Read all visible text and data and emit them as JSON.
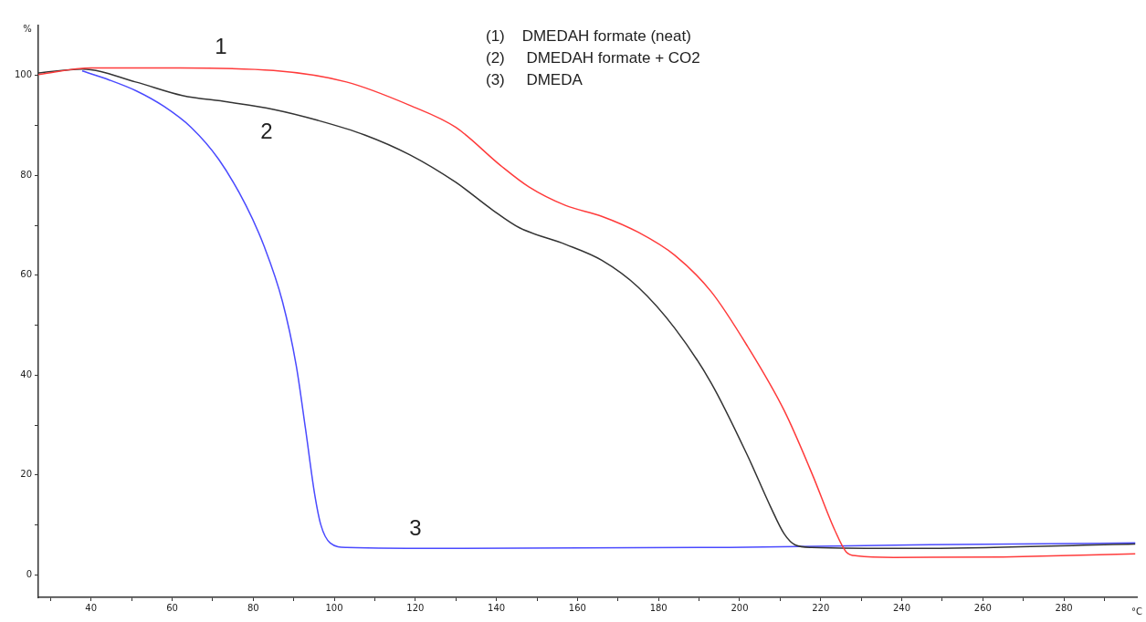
{
  "chart_data": {
    "type": "line",
    "xlabel": "°C",
    "ylabel": "%",
    "xlim": [
      27,
      298
    ],
    "ylim": [
      -4.5,
      110
    ],
    "xticks": [
      {
        "value": 30,
        "label": null
      },
      40,
      {
        "value": 50,
        "label": null
      },
      60,
      {
        "value": 70,
        "label": null
      },
      80,
      {
        "value": 90,
        "label": null
      },
      100,
      {
        "value": 110,
        "label": null
      },
      120,
      {
        "value": 130,
        "label": null
      },
      140,
      {
        "value": 150,
        "label": null
      },
      160,
      {
        "value": 170,
        "label": null
      },
      180,
      {
        "value": 190,
        "label": null
      },
      200,
      {
        "value": 210,
        "label": null
      },
      220,
      {
        "value": 230,
        "label": null
      },
      240,
      {
        "value": 250,
        "label": null
      },
      260,
      {
        "value": 270,
        "label": null
      },
      280,
      {
        "value": 290,
        "label": null
      }
    ],
    "yticks": [
      0,
      {
        "value": 10,
        "label": null
      },
      20,
      {
        "value": 30,
        "label": null
      },
      40,
      {
        "value": 50,
        "label": null
      },
      60,
      {
        "value": 70,
        "label": null
      },
      80,
      {
        "value": 90,
        "label": null
      },
      100
    ],
    "marker": "none",
    "line_style": "solid",
    "legend": false,
    "series": [
      {
        "color": "#ff3b3b",
        "x": [
          27,
          40,
          62,
          85,
          103,
          118.7,
          130,
          141,
          148,
          157,
          166,
          175,
          184,
          193,
          202,
          211,
          218,
          223.4,
          226.3,
          229,
          238,
          265,
          297.6
        ],
        "values": [
          100.2,
          101.5,
          101.5,
          101,
          98.7,
          94,
          89.6,
          82,
          77.7,
          74,
          71.8,
          68.6,
          64,
          56.7,
          45.7,
          32.9,
          20,
          9.1,
          4.6,
          3.8,
          3.5,
          3.6,
          4.2
        ]
      },
      {
        "color": "#333333",
        "x": [
          27,
          37.8,
          51,
          62.5,
          73.7,
          85,
          96,
          107.5,
          118.7,
          130,
          139,
          145.7,
          157,
          166,
          175,
          184,
          193,
          202,
          207.6,
          211,
          213.7,
          217.7,
          242.5,
          297.6
        ],
        "values": [
          100.5,
          101.3,
          98.7,
          96,
          94.7,
          93.2,
          91,
          88.1,
          84.1,
          78.6,
          73.1,
          69.5,
          66.2,
          63,
          57.6,
          49.4,
          38.4,
          23.8,
          13.7,
          8.2,
          6,
          5.5,
          5.3,
          6.2
        ]
      },
      {
        "color": "#4a4aff",
        "x": [
          37.8,
          44.5,
          51.2,
          58,
          64.7,
          71.5,
          78.2,
          82.7,
          87.2,
          90.6,
          92.9,
          95.1,
          96.7,
          99,
          103,
          130,
          197.5,
          242.5,
          297.6
        ],
        "values": [
          100.9,
          99.1,
          96.9,
          93.8,
          89.6,
          83.2,
          74,
          65.8,
          54.8,
          42,
          29.3,
          16.5,
          10,
          6.4,
          5.5,
          5.3,
          5.5,
          6,
          6.4
        ]
      }
    ],
    "annotations": [
      "(1)    DMEDAH formate (neat)",
      "(2)     DMEDAH formate + CO2",
      "(3)     DMEDA",
      "1",
      "2",
      "3"
    ]
  }
}
